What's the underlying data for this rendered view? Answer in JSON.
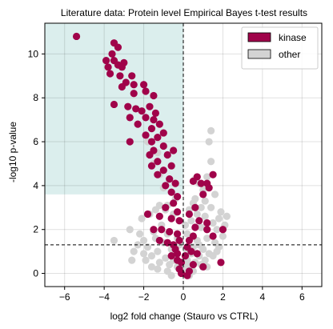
{
  "chart_data": {
    "type": "scatter",
    "title": "Literature data: Protein level Empirical Bayes t-test results",
    "xlabel": "log2 fold change (Stauro vs CTRL)",
    "ylabel": "-log10 p-value",
    "xlim": [
      -7,
      7
    ],
    "ylim": [
      -0.6,
      11.4
    ],
    "xticks": [
      -6,
      -4,
      -2,
      0,
      2,
      4,
      6
    ],
    "yticks": [
      0,
      2,
      4,
      6,
      8,
      10
    ],
    "grid": true,
    "legend_position": "top-right",
    "reference_lines": {
      "vertical_x": 0,
      "horizontal_y": 1.3
    },
    "highlight_region": {
      "x": [
        -7,
        0
      ],
      "y": [
        3.6,
        11.4
      ],
      "color": "#dbeeed"
    },
    "series": [
      {
        "name": "other",
        "color": "#d3d3d3",
        "points": [
          [
            -2.0,
            1.5
          ],
          [
            -1.8,
            1.2
          ],
          [
            -1.6,
            0.8
          ],
          [
            -1.5,
            1.9
          ],
          [
            -1.3,
            1.0
          ],
          [
            -1.2,
            0.5
          ],
          [
            -1.1,
            2.2
          ],
          [
            -1.0,
            1.4
          ],
          [
            -0.9,
            0.7
          ],
          [
            -0.8,
            1.8
          ],
          [
            -0.7,
            0.4
          ],
          [
            -0.6,
            1.1
          ],
          [
            -0.5,
            0.6
          ],
          [
            -0.4,
            0.9
          ],
          [
            -0.3,
            0.3
          ],
          [
            -0.2,
            0.5
          ],
          [
            -0.1,
            0.2
          ],
          [
            0.0,
            0.1
          ],
          [
            0.1,
            0.3
          ],
          [
            0.2,
            0.6
          ],
          [
            0.3,
            0.4
          ],
          [
            0.4,
            0.9
          ],
          [
            0.5,
            1.2
          ],
          [
            0.6,
            0.5
          ],
          [
            0.7,
            1.5
          ],
          [
            0.8,
            0.8
          ],
          [
            0.9,
            2.1
          ],
          [
            1.0,
            1.1
          ],
          [
            1.1,
            2.6
          ],
          [
            1.2,
            1.6
          ],
          [
            1.3,
            0.9
          ],
          [
            1.4,
            3.0
          ],
          [
            1.5,
            2.3
          ],
          [
            1.6,
            3.6
          ],
          [
            1.7,
            2.0
          ],
          [
            1.8,
            1.2
          ],
          [
            1.9,
            2.8
          ],
          [
            2.0,
            1.7
          ],
          [
            0.6,
            3.4
          ],
          [
            0.8,
            4.1
          ],
          [
            1.0,
            3.8
          ],
          [
            1.2,
            4.4
          ],
          [
            1.4,
            5.1
          ],
          [
            1.3,
            6.0
          ],
          [
            1.4,
            6.5
          ],
          [
            0.7,
            2.7
          ],
          [
            0.4,
            2.4
          ],
          [
            0.2,
            1.8
          ],
          [
            -0.3,
            1.6
          ],
          [
            -0.6,
            2.5
          ],
          [
            -0.9,
            2.9
          ],
          [
            -1.2,
            3.1
          ],
          [
            -0.4,
            3.4
          ],
          [
            -2.2,
            1.8
          ],
          [
            -2.5,
            1.0
          ],
          [
            -2.1,
            2.5
          ],
          [
            -1.7,
            2.7
          ],
          [
            -1.4,
            2.9
          ],
          [
            -1.9,
            0.6
          ],
          [
            -1.6,
            0.3
          ],
          [
            -1.3,
            0.2
          ],
          [
            -0.8,
            0.1
          ],
          [
            -0.6,
            -0.1
          ],
          [
            0.3,
            -0.1
          ],
          [
            0.5,
            0.1
          ],
          [
            0.9,
            0.4
          ],
          [
            1.1,
            0.6
          ],
          [
            1.5,
            0.8
          ],
          [
            1.7,
            1.0
          ],
          [
            -3.5,
            1.5
          ],
          [
            -2.7,
            2.0
          ],
          [
            -2.3,
            1.3
          ],
          [
            -1.5,
            5.0
          ],
          [
            -1.2,
            4.5
          ],
          [
            -1.0,
            3.9
          ],
          [
            -1.8,
            6.0
          ],
          [
            -1.3,
            5.5
          ],
          [
            -0.8,
            3.1
          ],
          [
            -0.5,
            2.7
          ],
          [
            0.1,
            2.2
          ],
          [
            0.3,
            2.9
          ],
          [
            0.5,
            3.2
          ],
          [
            0.6,
            4.3
          ],
          [
            0.9,
            3.0
          ],
          [
            1.1,
            3.3
          ],
          [
            1.8,
            2.5
          ],
          [
            2.1,
            2.2
          ],
          [
            2.2,
            2.6
          ],
          [
            -2.6,
            0.6
          ],
          [
            -2.0,
            0.9
          ],
          [
            -1.4,
            1.6
          ],
          [
            -0.2,
            1.3
          ],
          [
            0.2,
            1.0
          ],
          [
            0.8,
            1.3
          ],
          [
            1.2,
            0.3
          ],
          [
            1.6,
            1.4
          ]
        ]
      },
      {
        "name": "kinase",
        "color": "#a0034a",
        "points": [
          [
            -5.4,
            10.8
          ],
          [
            -3.5,
            10.5
          ],
          [
            -3.3,
            10.3
          ],
          [
            -3.6,
            10.0
          ],
          [
            -3.9,
            9.7
          ],
          [
            -3.5,
            9.7
          ],
          [
            -3.0,
            9.6
          ],
          [
            -3.8,
            9.4
          ],
          [
            -3.3,
            9.5
          ],
          [
            -3.1,
            9.4
          ],
          [
            -3.7,
            9.1
          ],
          [
            -3.2,
            9.0
          ],
          [
            -2.6,
            9.0
          ],
          [
            -2.9,
            8.7
          ],
          [
            -3.1,
            8.5
          ],
          [
            -2.5,
            8.6
          ],
          [
            -2.0,
            8.6
          ],
          [
            -2.5,
            8.2
          ],
          [
            -1.9,
            8.3
          ],
          [
            -1.5,
            8.1
          ],
          [
            -3.5,
            7.7
          ],
          [
            -2.8,
            7.6
          ],
          [
            -2.4,
            7.5
          ],
          [
            -1.7,
            7.6
          ],
          [
            -2.1,
            7.4
          ],
          [
            -1.4,
            7.3
          ],
          [
            -2.7,
            7.1
          ],
          [
            -1.9,
            7.1
          ],
          [
            -1.5,
            7.0
          ],
          [
            -2.3,
            6.8
          ],
          [
            -1.6,
            6.6
          ],
          [
            -1.2,
            6.8
          ],
          [
            -1.9,
            6.3
          ],
          [
            -1.6,
            6.0
          ],
          [
            -1.3,
            6.2
          ],
          [
            -1.0,
            6.4
          ],
          [
            -2.7,
            6.0
          ],
          [
            -1.5,
            5.6
          ],
          [
            -1.0,
            5.8
          ],
          [
            -1.7,
            5.4
          ],
          [
            -1.3,
            5.1
          ],
          [
            -0.8,
            5.4
          ],
          [
            -0.5,
            5.6
          ],
          [
            -1.6,
            4.9
          ],
          [
            -1.0,
            4.7
          ],
          [
            -0.6,
            4.9
          ],
          [
            -1.3,
            4.5
          ],
          [
            -0.7,
            4.3
          ],
          [
            -0.9,
            4.0
          ],
          [
            -0.4,
            4.1
          ],
          [
            -0.6,
            3.7
          ],
          [
            -0.3,
            3.5
          ],
          [
            -0.5,
            3.2
          ],
          [
            -0.9,
            3.0
          ],
          [
            -0.3,
            2.8
          ],
          [
            -1.8,
            2.7
          ],
          [
            -1.2,
            2.6
          ],
          [
            -0.6,
            2.5
          ],
          [
            -0.2,
            2.4
          ],
          [
            -1.5,
            2.0
          ],
          [
            -1.1,
            2.0
          ],
          [
            -0.7,
            1.9
          ],
          [
            -0.3,
            1.8
          ],
          [
            -0.2,
            1.5
          ],
          [
            -1.2,
            1.5
          ],
          [
            -0.8,
            1.4
          ],
          [
            -0.5,
            1.3
          ],
          [
            -0.4,
            1.1
          ],
          [
            -0.3,
            0.9
          ],
          [
            -0.6,
            0.8
          ],
          [
            -0.3,
            0.6
          ],
          [
            -0.1,
            0.5
          ],
          [
            -0.2,
            0.2
          ],
          [
            0.1,
            0.8
          ],
          [
            0.2,
            1.2
          ],
          [
            0.3,
            1.5
          ],
          [
            0.4,
            1.0
          ],
          [
            0.5,
            1.7
          ],
          [
            0.6,
            2.1
          ],
          [
            0.8,
            2.4
          ],
          [
            0.3,
            2.7
          ],
          [
            0.6,
            3.0
          ],
          [
            1.2,
            2.0
          ],
          [
            1.5,
            1.7
          ],
          [
            2.0,
            2.0
          ],
          [
            1.3,
            3.9
          ],
          [
            0.9,
            4.1
          ],
          [
            1.5,
            4.5
          ],
          [
            0.5,
            4.2
          ],
          [
            0.7,
            4.4
          ],
          [
            1.2,
            4.1
          ],
          [
            1.0,
            3.6
          ],
          [
            1.2,
            2.3
          ],
          [
            0.7,
            0.9
          ],
          [
            0.5,
            0.4
          ],
          [
            0.3,
            0.1
          ],
          [
            1.9,
            0.5
          ],
          [
            1.0,
            0.3
          ],
          [
            0.2,
            -0.1
          ],
          [
            -0.1,
            0.0
          ]
        ]
      }
    ]
  }
}
